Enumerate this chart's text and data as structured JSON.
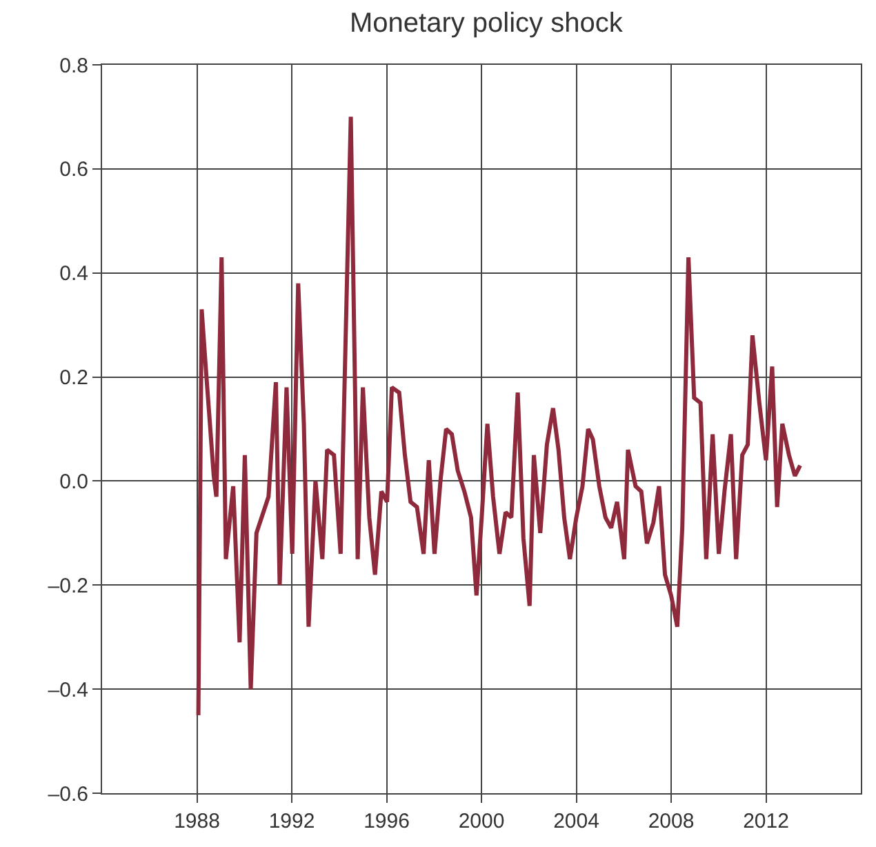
{
  "chart_data": {
    "type": "line",
    "title": "Monetary policy shock",
    "x": [
      1988.06,
      1988.2,
      1988.37,
      1988.71,
      1988.82,
      1988.98,
      1989.04,
      1989.22,
      1989.53,
      1989.8,
      1990.02,
      1990.27,
      1990.51,
      1991.02,
      1991.33,
      1991.49,
      1991.78,
      1992.02,
      1992.27,
      1992.51,
      1992.71,
      1993.0,
      1993.29,
      1993.49,
      1993.78,
      1994.06,
      1994.49,
      1994.78,
      1995.0,
      1995.27,
      1995.51,
      1995.78,
      1996.02,
      1996.22,
      1996.53,
      1996.77,
      1997.01,
      1997.28,
      1997.56,
      1997.78,
      1998.02,
      1998.27,
      1998.51,
      1998.75,
      1999.0,
      1999.28,
      1999.56,
      1999.79,
      2000.01,
      2000.25,
      2000.49,
      2000.76,
      2001.02,
      2001.26,
      2001.53,
      2001.77,
      2002.03,
      2002.21,
      2002.48,
      2002.76,
      2003.02,
      2003.25,
      2003.49,
      2003.73,
      2004.0,
      2004.26,
      2004.5,
      2004.7,
      2004.97,
      2005.23,
      2005.47,
      2005.72,
      2006.02,
      2006.18,
      2006.5,
      2006.74,
      2006.98,
      2007.25,
      2007.49,
      2007.74,
      2008.0,
      2008.26,
      2008.47,
      2008.73,
      2008.97,
      2009.24,
      2009.48,
      2009.75,
      2010.01,
      2010.25,
      2010.52,
      2010.74,
      2011.0,
      2011.23,
      2011.43,
      2011.72,
      2012.0,
      2012.26,
      2012.47,
      2012.69,
      2012.97,
      2013.22,
      2013.44
    ],
    "series": [
      {
        "color": "#8e2a3b",
        "values": [
          -0.45,
          0.33,
          0.22,
          0.01,
          -0.03,
          0.3,
          0.43,
          -0.15,
          -0.01,
          -0.31,
          0.05,
          -0.4,
          -0.1,
          -0.03,
          0.19,
          -0.2,
          0.18,
          -0.14,
          0.38,
          0.11,
          -0.28,
          0.0,
          -0.15,
          0.06,
          0.05,
          -0.14,
          0.7,
          -0.15,
          0.18,
          -0.07,
          -0.18,
          -0.02,
          -0.04,
          0.18,
          0.17,
          0.05,
          -0.04,
          -0.05,
          -0.14,
          0.04,
          -0.14,
          0.0,
          0.1,
          0.09,
          0.02,
          -0.02,
          -0.07,
          -0.22,
          -0.07,
          0.11,
          -0.03,
          -0.14,
          -0.06,
          -0.07,
          0.17,
          -0.11,
          -0.24,
          0.05,
          -0.1,
          0.07,
          0.14,
          0.06,
          -0.07,
          -0.15,
          -0.07,
          -0.01,
          0.1,
          0.08,
          -0.01,
          -0.07,
          -0.09,
          -0.04,
          -0.15,
          0.06,
          -0.01,
          -0.02,
          -0.12,
          -0.08,
          -0.01,
          -0.18,
          -0.22,
          -0.28,
          -0.09,
          0.43,
          0.16,
          0.15,
          -0.15,
          0.09,
          -0.14,
          -0.02,
          0.09,
          -0.15,
          0.05,
          0.07,
          0.28,
          0.15,
          0.04,
          0.22,
          -0.05,
          0.11,
          0.05,
          0.01,
          0.03
        ]
      }
    ],
    "xlim": [
      1984,
      2016
    ],
    "xticks": [
      1988,
      1992,
      1996,
      2000,
      2004,
      2008,
      2012
    ],
    "ylim": [
      -0.6,
      0.8
    ],
    "yticks": [
      {
        "value": -0.6,
        "label": "–0.6"
      },
      {
        "value": -0.4,
        "label": "–0.4"
      },
      {
        "value": -0.2,
        "label": "–0.2"
      },
      {
        "value": 0,
        "label": "0.0"
      },
      {
        "value": 0.2,
        "label": "0.2"
      },
      {
        "value": 0.4,
        "label": "0.4"
      },
      {
        "value": 0.6,
        "label": "0.6"
      },
      {
        "value": 0.8,
        "label": "0.8"
      }
    ],
    "grid": true,
    "marker": "none",
    "line_style": "solid"
  }
}
